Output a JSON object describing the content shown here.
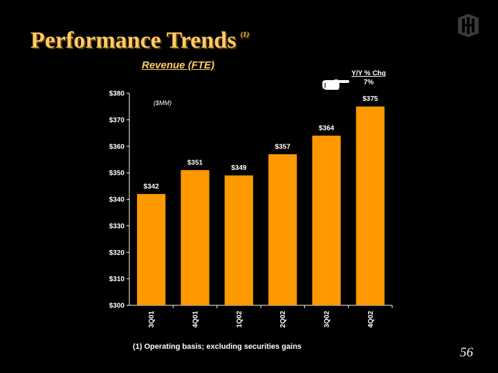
{
  "slide": {
    "title": "Performance Trends",
    "title_note": "(1)",
    "subtitle": "Revenue (FTE)",
    "footnote": "(1)  Operating basis; excluding securities gains",
    "page_number": "56"
  },
  "yoy": {
    "heading": "Y/Y % Chg",
    "value": "7%"
  },
  "icons": {
    "logo": "bank-logo-icon",
    "pointer": "pointing-hand-icon"
  },
  "chart_data": {
    "type": "bar",
    "unit_label": "($MM)",
    "categories": [
      "3Q01",
      "4Q01",
      "1Q02",
      "2Q02",
      "3Q02",
      "4Q02"
    ],
    "values": [
      342,
      351,
      349,
      357,
      364,
      375
    ],
    "data_labels": [
      "$342",
      "$351",
      "$349",
      "$357",
      "$364",
      "$375"
    ],
    "ylim": [
      300,
      380
    ],
    "yticks": [
      300,
      310,
      320,
      330,
      340,
      350,
      360,
      370,
      380
    ],
    "ytick_labels": [
      "$300",
      "$310",
      "$320",
      "$330",
      "$340",
      "$350",
      "$360",
      "$370",
      "$380"
    ],
    "bar_color": "#FF9900",
    "grid": false
  }
}
